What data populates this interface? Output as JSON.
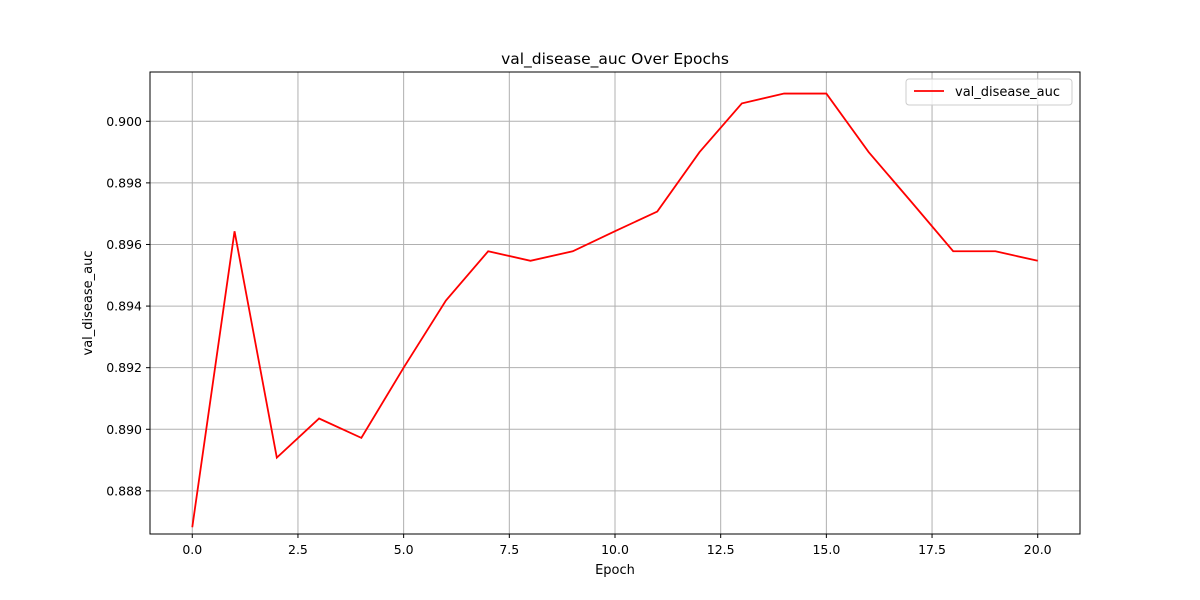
{
  "chart_data": {
    "type": "line",
    "title": "val_disease_auc Over Epochs",
    "xlabel": "Epoch",
    "ylabel": "val_disease_auc",
    "xlim": [
      -1,
      21
    ],
    "ylim": [
      0.8866,
      0.9016
    ],
    "x_ticks": [
      0.0,
      2.5,
      5.0,
      7.5,
      10.0,
      12.5,
      15.0,
      17.5,
      20.0
    ],
    "x_tick_labels": [
      "0.0",
      "2.5",
      "5.0",
      "7.5",
      "10.0",
      "12.5",
      "15.0",
      "17.5",
      "20.0"
    ],
    "y_ticks": [
      0.888,
      0.89,
      0.892,
      0.894,
      0.896,
      0.898,
      0.9
    ],
    "y_tick_labels": [
      "0.888",
      "0.890",
      "0.892",
      "0.894",
      "0.896",
      "0.898",
      "0.900"
    ],
    "grid": true,
    "legend_position": "top-right",
    "series": [
      {
        "name": "val_disease_auc",
        "color": "#ff0000",
        "x": [
          0,
          1,
          2,
          3,
          4,
          5,
          6,
          7,
          8,
          9,
          10,
          11,
          12,
          13,
          14,
          15,
          16,
          17,
          18,
          19,
          20
        ],
        "values": [
          0.88682,
          0.89643,
          0.88908,
          0.89035,
          0.88972,
          0.892,
          0.89418,
          0.89578,
          0.89547,
          0.89578,
          0.89643,
          0.89707,
          0.899,
          0.90058,
          0.9009,
          0.9009,
          0.899,
          0.8974,
          0.89578,
          0.89578,
          0.89547
        ]
      }
    ]
  },
  "colors": {
    "axis": "#000000",
    "grid": "#b0b0b0",
    "legend_border": "#cccccc"
  }
}
